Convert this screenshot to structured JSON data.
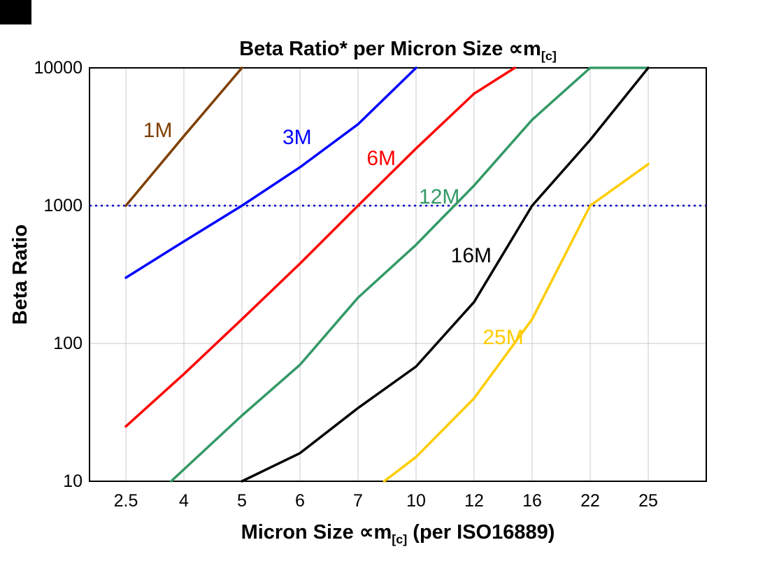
{
  "title": {
    "main": "Beta Ratio* per Micron Size ∝m",
    "sub": "[c]"
  },
  "axes": {
    "y_label": "Beta Ratio",
    "x_label_main": "Micron Size ∝m",
    "x_label_sub": "[c]",
    "x_label_rest": " (per ISO16889)"
  },
  "chart_data": {
    "type": "line",
    "title": "Beta Ratio* per Micron Size ∝m[c]",
    "xlabel": "Micron Size ∝m[c] (per ISO16889)",
    "ylabel": "Beta Ratio",
    "x_categories": [
      "2.5",
      "4",
      "5",
      "6",
      "7",
      "10",
      "12",
      "16",
      "22",
      "25"
    ],
    "y_scale": "log",
    "ylim": [
      10,
      10000
    ],
    "y_ticks": [
      10000,
      1000,
      100,
      10
    ],
    "y_gridlines": [
      100,
      1000
    ],
    "grid_on": true,
    "grid_color": "#c8c8c8",
    "axis_color": "#000000",
    "reference_line": {
      "value": 1000,
      "color": "#0000cc",
      "style": "dotted"
    },
    "series": [
      {
        "name": "1M",
        "color": "#7f3f00",
        "points": [
          [
            0,
            1000
          ],
          [
            1,
            3200
          ],
          [
            2,
            10000
          ]
        ],
        "label_at": [
          0.55,
          3500
        ]
      },
      {
        "name": "3M",
        "color": "#0000ff",
        "points": [
          [
            0,
            300
          ],
          [
            1,
            550
          ],
          [
            2,
            1000
          ],
          [
            3,
            1900
          ],
          [
            4,
            3900
          ],
          [
            5,
            10000
          ]
        ],
        "label_at": [
          2.95,
          3100
        ]
      },
      {
        "name": "6M",
        "color": "#ff0000",
        "points": [
          [
            0,
            25
          ],
          [
            1,
            60
          ],
          [
            2,
            150
          ],
          [
            3,
            380
          ],
          [
            4,
            1000
          ],
          [
            5,
            2600
          ],
          [
            6,
            6500
          ],
          [
            6.7,
            10000
          ]
        ],
        "label_at": [
          4.4,
          2200
        ]
      },
      {
        "name": "12M",
        "color": "#339966",
        "points": [
          [
            0.78,
            10
          ],
          [
            2,
            30
          ],
          [
            3,
            70
          ],
          [
            4,
            215
          ],
          [
            5,
            520
          ],
          [
            6,
            1400
          ],
          [
            7,
            4200
          ],
          [
            8,
            10000
          ],
          [
            9,
            10000
          ]
        ],
        "label_at": [
          5.4,
          1150
        ]
      },
      {
        "name": "16M",
        "color": "#000000",
        "points": [
          [
            2,
            10
          ],
          [
            3,
            16
          ],
          [
            4,
            34
          ],
          [
            5,
            68
          ],
          [
            6,
            200
          ],
          [
            7,
            1000
          ],
          [
            8,
            3000
          ],
          [
            9,
            10000
          ]
        ],
        "label_at": [
          5.95,
          430
        ]
      },
      {
        "name": "25M",
        "color": "#ffcc00",
        "points": [
          [
            4.45,
            10
          ],
          [
            5,
            15
          ],
          [
            6,
            40
          ],
          [
            7,
            150
          ],
          [
            8,
            1000
          ],
          [
            9,
            2000
          ]
        ],
        "label_at": [
          6.5,
          110
        ]
      }
    ]
  }
}
